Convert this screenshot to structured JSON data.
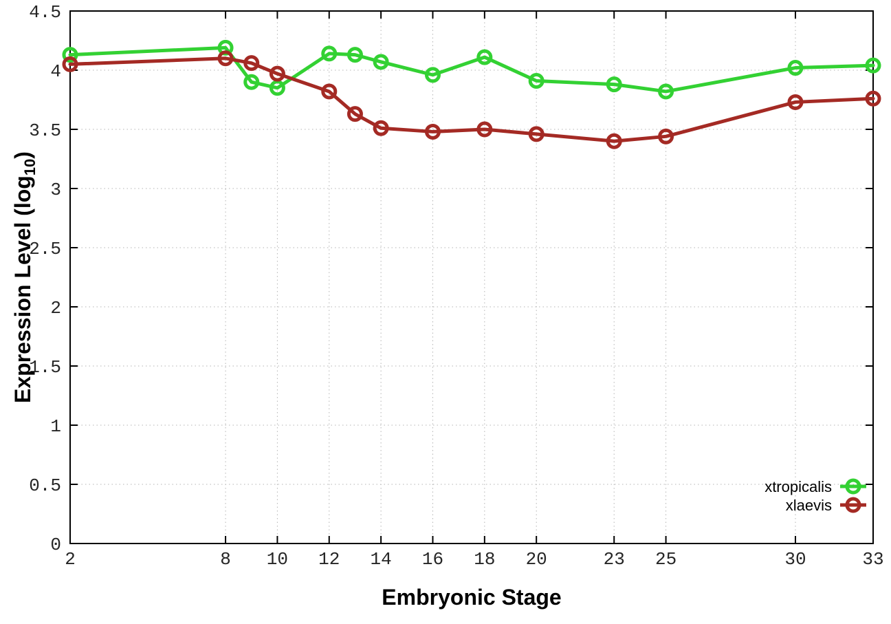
{
  "page": {
    "background": "#ffffff"
  },
  "style": {
    "axis_color": "#000000",
    "grid_color": "#b3b3b3",
    "tick_text_color": "#262626",
    "background": "#ffffff"
  },
  "chart_data": {
    "type": "line",
    "title": "",
    "xlabel": "Embryonic Stage",
    "ylabel": "Expression Level (log10)",
    "ylabel_parts": {
      "prefix": "Expression Level (log",
      "sub": "10",
      "suffix": ")"
    },
    "xlim": [
      2,
      33
    ],
    "ylim": [
      0,
      4.5
    ],
    "grid": true,
    "legend_position": "bottom-right",
    "x_ticks": [
      2,
      8,
      10,
      12,
      14,
      16,
      18,
      20,
      23,
      25,
      30,
      33
    ],
    "y_ticks": [
      0,
      0.5,
      1,
      1.5,
      2,
      2.5,
      3,
      3.5,
      4,
      4.5
    ],
    "x": [
      2,
      8,
      9,
      10,
      12,
      13,
      14,
      16,
      18,
      20,
      23,
      25,
      30,
      33
    ],
    "series": [
      {
        "name": "xtropicalis",
        "color": "#33d133",
        "marker": "open-circle",
        "values": [
          4.13,
          4.19,
          3.9,
          3.85,
          4.14,
          4.13,
          4.07,
          3.96,
          4.11,
          3.91,
          3.88,
          3.82,
          4.02,
          4.04
        ]
      },
      {
        "name": "xlaevis",
        "color": "#a42a24",
        "marker": "open-circle",
        "values": [
          4.05,
          4.1,
          4.06,
          3.97,
          3.82,
          3.63,
          3.51,
          3.48,
          3.5,
          3.46,
          3.4,
          3.44,
          3.73,
          3.76
        ]
      }
    ]
  }
}
